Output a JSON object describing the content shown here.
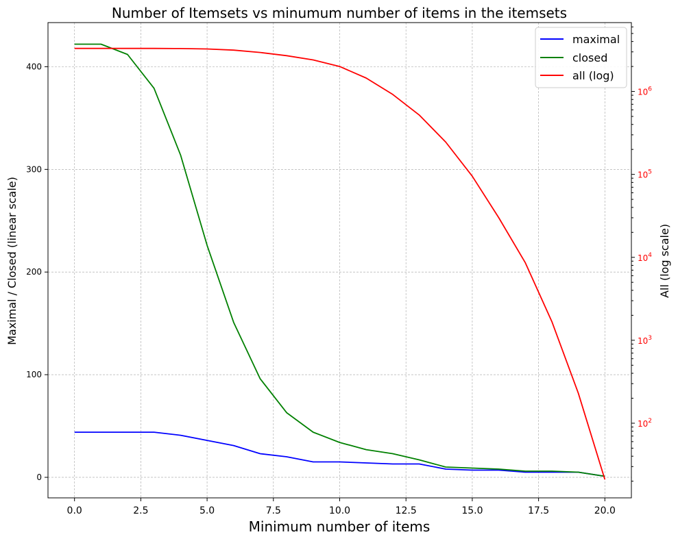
{
  "chart_data": {
    "type": "line",
    "title": "Number of Itemsets vs minumum number of items in the itemsets",
    "xlabel": "Minimum number of items",
    "ylabel_left": "Maximal / Closed (linear scale)",
    "ylabel_right": "All (log scale)",
    "xlim": [
      -1,
      21
    ],
    "ylim_left": [
      -20,
      443
    ],
    "ylim_right_log10": [
      1.1,
      6.83
    ],
    "x_ticks": [
      "0.0",
      "2.5",
      "5.0",
      "7.5",
      "10.0",
      "12.5",
      "15.0",
      "17.5",
      "20.0"
    ],
    "x_tick_values": [
      0,
      2.5,
      5,
      7.5,
      10,
      12.5,
      15,
      17.5,
      20
    ],
    "y_left_ticks": [
      "0",
      "100",
      "200",
      "300",
      "400"
    ],
    "y_left_tick_values": [
      0,
      100,
      200,
      300,
      400
    ],
    "y_right_ticks": [
      {
        "base": "10",
        "exp": "2",
        "value": 100
      },
      {
        "base": "10",
        "exp": "3",
        "value": 1000
      },
      {
        "base": "10",
        "exp": "4",
        "value": 10000
      },
      {
        "base": "10",
        "exp": "5",
        "value": 100000
      },
      {
        "base": "10",
        "exp": "6",
        "value": 1000000
      }
    ],
    "right_axis_color": "#ff0000",
    "grid": true,
    "legend_position": "top-right",
    "x": [
      0,
      1,
      2,
      3,
      4,
      5,
      6,
      7,
      8,
      9,
      10,
      11,
      12,
      13,
      14,
      15,
      16,
      17,
      18,
      19,
      20
    ],
    "series": [
      {
        "name": "maximal",
        "axis": "left",
        "color": "#0000ff",
        "values": [
          44,
          44,
          44,
          44,
          41,
          36,
          31,
          23,
          20,
          15,
          15,
          14,
          13,
          13,
          8,
          7,
          7,
          5,
          5,
          5,
          1
        ]
      },
      {
        "name": "closed",
        "axis": "left",
        "color": "#008000",
        "values": [
          422,
          422,
          412,
          379,
          314,
          226,
          151,
          96,
          63,
          44,
          34,
          27,
          23,
          17,
          10,
          9,
          8,
          6,
          6,
          5,
          1
        ]
      },
      {
        "name": "all (log)",
        "axis": "right",
        "color": "#ff0000",
        "values": [
          3300000,
          3300000,
          3300000,
          3300000,
          3290000,
          3250000,
          3150000,
          2950000,
          2700000,
          2400000,
          2000000,
          1450000,
          920000,
          520000,
          245000,
          95000,
          30000,
          8600,
          1680,
          230,
          21
        ]
      }
    ]
  }
}
